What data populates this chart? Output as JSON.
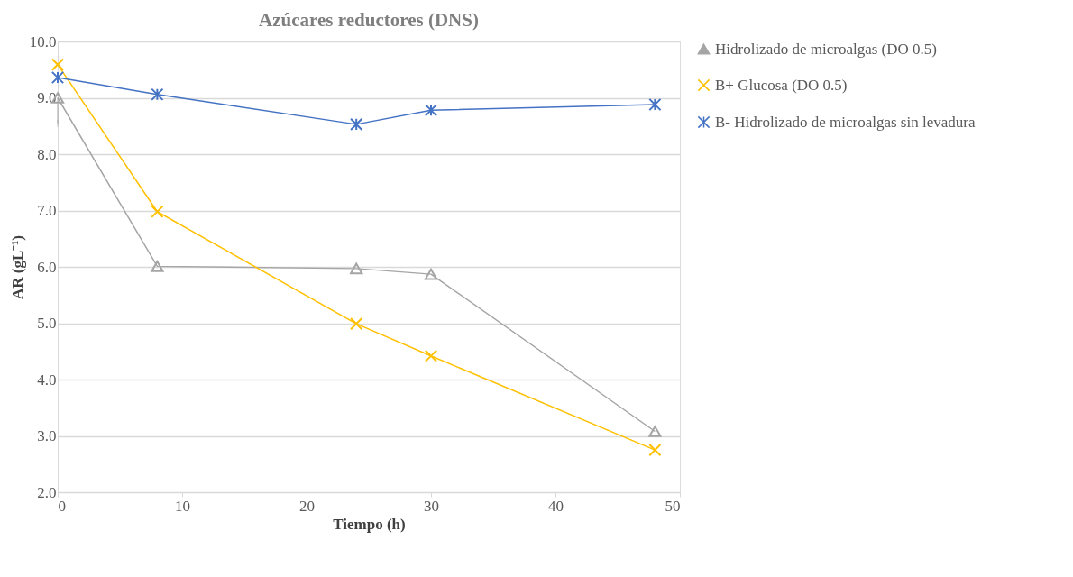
{
  "chart_data": {
    "type": "line",
    "title": "Azúcares reductores (DNS)",
    "xlabel": "Tiempo (h)",
    "ylabel": "AR (gL⁻¹)",
    "x": [
      0,
      8,
      24,
      30,
      48
    ],
    "series": [
      {
        "name": "Hidrolizado de microalgas (DO 0.5)",
        "color": "#a5a5a5",
        "marker": "triangle",
        "values": [
          9.0,
          6.01,
          5.97,
          5.87,
          3.08
        ],
        "errors": [
          [
            8.55,
            9.0
          ],
          null,
          null,
          null,
          null
        ]
      },
      {
        "name": "B+ Glucosa (DO 0.5)",
        "color": "#ffc000",
        "marker": "cross",
        "values": [
          9.59,
          6.98,
          4.99,
          4.42,
          2.75
        ]
      },
      {
        "name": "B- Hidrolizado de microalgas sin levadura",
        "color": "#4472c4",
        "marker": "cross",
        "values": [
          9.36,
          9.06,
          8.53,
          8.78,
          8.88
        ]
      }
    ],
    "xlim": [
      0,
      50
    ],
    "xticks": [
      0,
      10,
      20,
      30,
      40,
      50
    ],
    "ylim": [
      2.0,
      10.0
    ],
    "yticks": [
      {
        "value": 2,
        "label": "2.0"
      },
      {
        "value": 3,
        "label": "3.0"
      },
      {
        "value": 4,
        "label": "4.0"
      },
      {
        "value": 5,
        "label": "5.0"
      },
      {
        "value": 6,
        "label": "6.0"
      },
      {
        "value": 7,
        "label": "7.0"
      },
      {
        "value": 8,
        "label": "8.0"
      },
      {
        "value": 9,
        "label": "9.0"
      },
      {
        "value": 10,
        "label": "10.0"
      }
    ],
    "grid": "y",
    "legend": "right",
    "line_style": "solid"
  }
}
